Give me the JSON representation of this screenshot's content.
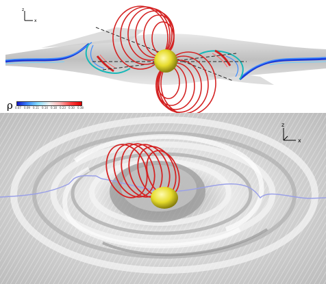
{
  "top_view": {
    "axes_triad": {
      "vertical_axis": "z",
      "horizontal_axis": "x"
    },
    "colorbar": {
      "symbol": "ρ",
      "ticks": [
        "0.07",
        "0.09",
        "0.11",
        "0.14",
        "0.18",
        "0.23",
        "0.30",
        "0.38"
      ],
      "colors": [
        "#1414c8",
        "#3c8cff",
        "#8ce0ff",
        "#f0f0f0",
        "#ffb0b0",
        "#ff4040",
        "#e00000"
      ]
    }
  },
  "bottom_view": {
    "axes_triad": {
      "vertical_axis": "z",
      "horizontal_axis": "x"
    }
  },
  "colors": {
    "field_lines": "#d42222",
    "sphere": "#e8e030",
    "disk": "#c8c8c8",
    "accent_line": "#9aa0e8"
  }
}
